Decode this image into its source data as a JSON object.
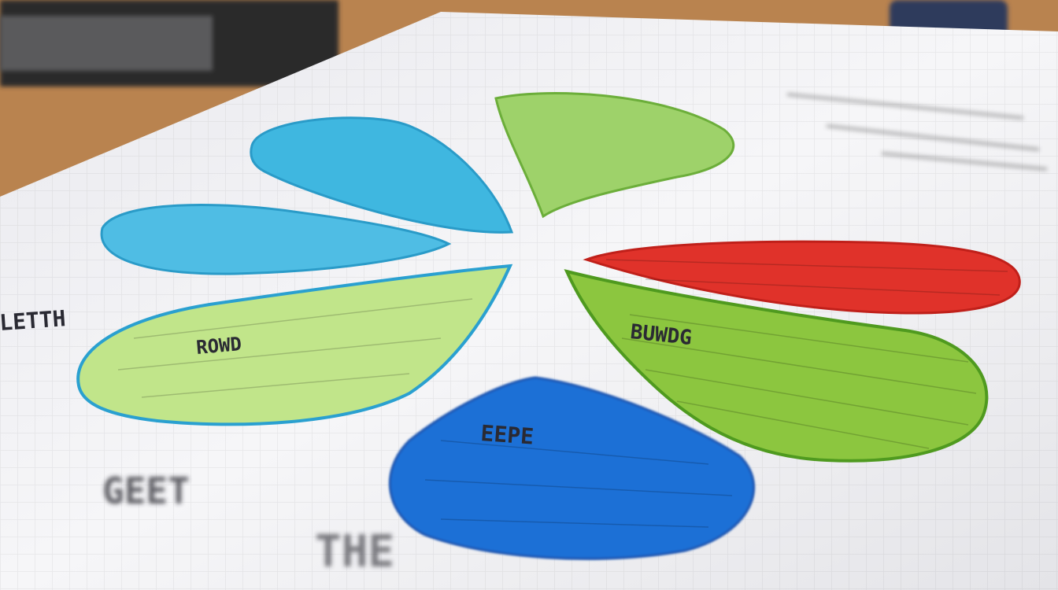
{
  "photo": {
    "subject": "hand-drawn petal diagram on paper",
    "colors": {
      "wood": "#b9834f",
      "paper": "#f4f4f6",
      "light_blue": "#3fb7e0",
      "green": "#8cc63f",
      "light_green": "#b8e07a",
      "red": "#e0322a",
      "blue": "#1f6fd6",
      "ink": "#2a2a33"
    },
    "scrawls": {
      "bottom_left": "GEET",
      "bottom_center": "THE",
      "green_right_petal": "BUWDG",
      "green_left_petal": "ROWD",
      "blue_petal": "EEPE",
      "left_margin": "LETTH"
    }
  }
}
